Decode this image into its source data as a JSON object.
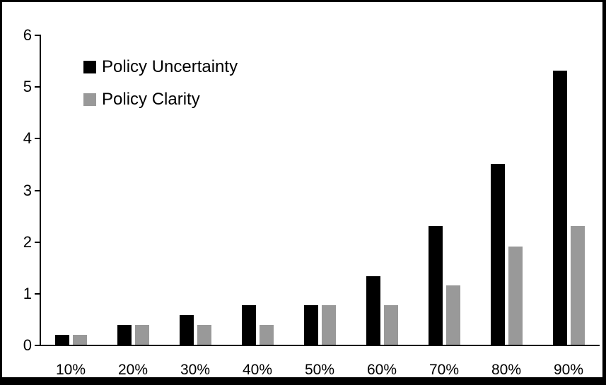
{
  "chart_data": {
    "type": "bar",
    "title": "",
    "xlabel": "",
    "ylabel": "",
    "categories": [
      "10%",
      "20%",
      "30%",
      "40%",
      "50%",
      "60%",
      "70%",
      "80%",
      "90%"
    ],
    "series": [
      {
        "name": "Policy Uncertainty",
        "color": "#000000",
        "values": [
          0.19,
          0.38,
          0.57,
          0.76,
          0.77,
          1.33,
          2.3,
          3.5,
          5.3
        ]
      },
      {
        "name": "Policy Clarity",
        "color": "#999999",
        "values": [
          0.19,
          0.38,
          0.38,
          0.38,
          0.77,
          0.77,
          1.15,
          1.9,
          2.3
        ]
      }
    ],
    "ylim": [
      0,
      6
    ],
    "yticks": [
      0,
      1,
      2,
      3,
      4,
      5,
      6
    ],
    "grid": false,
    "legend_position": "top-left-inside"
  }
}
